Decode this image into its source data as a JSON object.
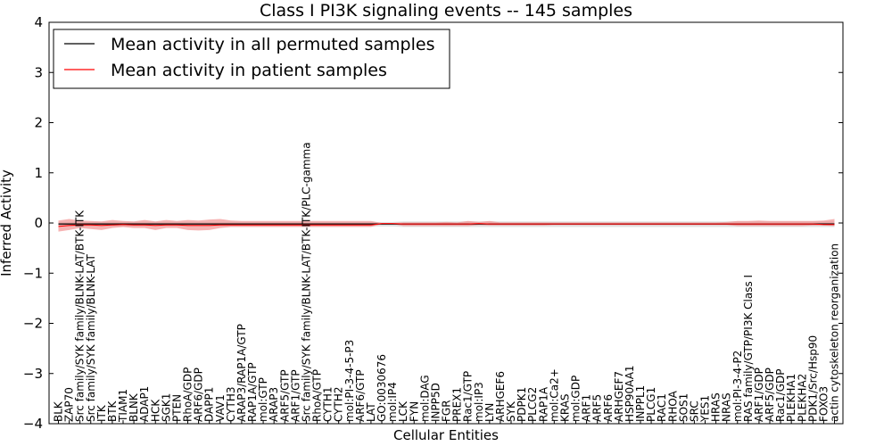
{
  "chart_data": {
    "type": "line",
    "title": "Class I PI3K signaling events -- 145 samples",
    "xlabel": "Cellular Entities",
    "ylabel": "Inferred Activity",
    "ylim": [
      -4,
      4
    ],
    "yticks": [
      -4,
      -3,
      -2,
      -1,
      0,
      1,
      2,
      3,
      4
    ],
    "ytick_labels": [
      "−4",
      "−3",
      "−2",
      "−1",
      "0",
      "1",
      "2",
      "3",
      "4"
    ],
    "legend_position": "top-left",
    "categories": [
      "BLK",
      "ZAP70",
      "Src family/SYK family/BLNK-LAT/BTK-ITK",
      "Src family/SYK family/BLNK-LAT",
      "ITK",
      "BTK",
      "TIAM1",
      "BLNK",
      "ADAP1",
      "HCK",
      "SGK1",
      "PTEN",
      "RhoA/GDP",
      "ARF6/GDP",
      "DAPP1",
      "VAV1",
      "CYTH3",
      "ARAP3/RAP1A/GTP",
      "RAP1A/GTP",
      "mol:GTP",
      "ARAP3",
      "ARF5/GTP",
      "ARF1/GTP",
      "Src family/SYK family/BLNK-LAT/BTK-ITK/PLC-gamma",
      "RhoA/GTP",
      "CYTH1",
      "CYTH2",
      "mol:PI-3-4-5-P3",
      "ARF6/GTP",
      "LAT",
      "GO:0030676",
      "mol:IP4",
      "LCK",
      "FYN",
      "mol:DAG",
      "INPP5D",
      "FGR",
      "PREX1",
      "Rac1/GTP",
      "mol:IP3",
      "LYN",
      "ARHGEF6",
      "SYK",
      "PDPK1",
      "PLCG2",
      "RAP1A",
      "mol:Ca2+",
      "KRAS",
      "mol:GDP",
      "ARF1",
      "ARF5",
      "ARF6",
      "ARHGEF7",
      "HSP90AA1",
      "INPPL1",
      "PLCG1",
      "RAC1",
      "RHOA",
      "SOS1",
      "SRC",
      "YES1",
      "HRAS",
      "NRAS",
      "mol:PI-3-4-P2",
      "RAS family/GTP/PI3K Class I",
      "ARF1/GDP",
      "ARF5/GDP",
      "Rac1/GDP",
      "PLEKHA1",
      "PLEKHA2",
      "PDK1/Src/Hsp90",
      "FOXO3",
      "actin cytoskeleton reorganization"
    ],
    "series": [
      {
        "name": "Mean activity in all permuted samples",
        "color": "#000000",
        "values": [
          -0.02,
          -0.02,
          -0.02,
          -0.02,
          -0.02,
          -0.02,
          -0.02,
          -0.02,
          -0.02,
          -0.02,
          -0.02,
          -0.02,
          -0.02,
          -0.02,
          -0.02,
          -0.02,
          -0.02,
          -0.02,
          -0.02,
          -0.02,
          -0.02,
          -0.02,
          -0.02,
          -0.02,
          -0.02,
          -0.02,
          -0.02,
          -0.02,
          -0.02,
          -0.02,
          -0.02,
          -0.02,
          -0.02,
          -0.02,
          -0.02,
          -0.02,
          -0.02,
          -0.02,
          -0.02,
          -0.02,
          -0.02,
          -0.02,
          -0.02,
          -0.02,
          -0.02,
          -0.02,
          -0.02,
          -0.02,
          -0.02,
          -0.02,
          -0.02,
          -0.02,
          -0.02,
          -0.02,
          -0.02,
          -0.02,
          -0.02,
          -0.02,
          -0.02,
          -0.02,
          -0.02,
          -0.02,
          -0.02,
          -0.02,
          -0.02,
          -0.02,
          -0.02,
          -0.02,
          -0.02,
          -0.02,
          -0.02,
          -0.02,
          -0.02
        ],
        "band_low": [
          -0.07,
          -0.07,
          -0.07,
          -0.07,
          -0.07,
          -0.07,
          -0.07,
          -0.07,
          -0.07,
          -0.07,
          -0.07,
          -0.07,
          -0.07,
          -0.07,
          -0.07,
          -0.07,
          -0.07,
          -0.07,
          -0.07,
          -0.07,
          -0.07,
          -0.07,
          -0.07,
          -0.07,
          -0.07,
          -0.07,
          -0.07,
          -0.07,
          -0.07,
          -0.07,
          -0.07,
          -0.07,
          -0.08,
          -0.08,
          -0.08,
          -0.08,
          -0.08,
          -0.08,
          -0.08,
          -0.08,
          -0.08,
          -0.08,
          -0.08,
          -0.08,
          -0.08,
          -0.08,
          -0.08,
          -0.08,
          -0.08,
          -0.08,
          -0.08,
          -0.08,
          -0.08,
          -0.08,
          -0.08,
          -0.08,
          -0.08,
          -0.08,
          -0.08,
          -0.08,
          -0.08,
          -0.08,
          -0.08,
          -0.08,
          -0.08,
          -0.08,
          -0.08,
          -0.08,
          -0.08,
          -0.08,
          -0.08,
          -0.08,
          -0.08
        ],
        "band_high": [
          0.02,
          0.02,
          0.02,
          0.02,
          0.02,
          0.02,
          0.02,
          0.02,
          0.02,
          0.02,
          0.02,
          0.02,
          0.02,
          0.02,
          0.02,
          0.02,
          0.02,
          0.02,
          0.02,
          0.02,
          0.02,
          0.02,
          0.02,
          0.02,
          0.02,
          0.02,
          0.02,
          0.02,
          0.02,
          0.02,
          0.02,
          0.02,
          0.03,
          0.03,
          0.03,
          0.03,
          0.03,
          0.03,
          0.03,
          0.03,
          0.03,
          0.03,
          0.03,
          0.03,
          0.03,
          0.03,
          0.03,
          0.03,
          0.03,
          0.03,
          0.03,
          0.03,
          0.03,
          0.03,
          0.03,
          0.03,
          0.03,
          0.03,
          0.03,
          0.03,
          0.03,
          0.03,
          0.03,
          0.03,
          0.03,
          0.03,
          0.03,
          0.03,
          0.03,
          0.03,
          0.03,
          0.03,
          0.03
        ]
      },
      {
        "name": "Mean activity in patient samples",
        "color": "#ff0000",
        "values": [
          -0.07,
          -0.05,
          -0.04,
          -0.04,
          -0.05,
          -0.04,
          -0.03,
          -0.04,
          -0.04,
          -0.05,
          -0.04,
          -0.04,
          -0.05,
          -0.05,
          -0.05,
          -0.04,
          -0.04,
          -0.04,
          -0.04,
          -0.04,
          -0.04,
          -0.04,
          -0.04,
          -0.04,
          -0.04,
          -0.04,
          -0.04,
          -0.04,
          -0.04,
          -0.04,
          -0.01,
          -0.01,
          -0.02,
          -0.02,
          -0.02,
          -0.02,
          -0.02,
          -0.02,
          -0.02,
          -0.01,
          -0.02,
          -0.02,
          -0.02,
          -0.02,
          -0.02,
          -0.02,
          -0.02,
          -0.02,
          -0.02,
          -0.02,
          -0.02,
          -0.02,
          -0.02,
          -0.02,
          -0.02,
          -0.02,
          -0.02,
          -0.02,
          -0.02,
          -0.02,
          -0.02,
          -0.02,
          -0.02,
          -0.02,
          -0.02,
          -0.02,
          -0.02,
          -0.02,
          -0.02,
          -0.02,
          -0.02,
          -0.03,
          -0.03
        ],
        "band_low": [
          -0.17,
          -0.14,
          -0.1,
          -0.12,
          -0.14,
          -0.1,
          -0.08,
          -0.1,
          -0.1,
          -0.14,
          -0.1,
          -0.1,
          -0.14,
          -0.15,
          -0.14,
          -0.1,
          -0.08,
          -0.08,
          -0.08,
          -0.08,
          -0.08,
          -0.08,
          -0.08,
          -0.08,
          -0.08,
          -0.08,
          -0.08,
          -0.08,
          -0.08,
          -0.08,
          -0.02,
          -0.02,
          -0.06,
          -0.06,
          -0.06,
          -0.06,
          -0.06,
          -0.06,
          -0.06,
          -0.04,
          -0.05,
          -0.05,
          -0.05,
          -0.05,
          -0.05,
          -0.05,
          -0.04,
          -0.04,
          -0.04,
          -0.04,
          -0.04,
          -0.04,
          -0.04,
          -0.04,
          -0.04,
          -0.04,
          -0.04,
          -0.04,
          -0.04,
          -0.04,
          -0.04,
          -0.04,
          -0.04,
          -0.06,
          -0.06,
          -0.06,
          -0.06,
          -0.06,
          -0.06,
          -0.06,
          -0.05,
          -0.05,
          -0.06
        ],
        "band_high": [
          0.05,
          0.08,
          0.05,
          0.04,
          0.03,
          0.06,
          0.04,
          0.03,
          0.06,
          0.03,
          0.06,
          0.04,
          0.06,
          0.05,
          0.07,
          0.08,
          0.05,
          0.04,
          0.04,
          0.04,
          0.04,
          0.04,
          0.04,
          0.04,
          0.04,
          0.04,
          0.04,
          0.04,
          0.04,
          0.04,
          0.0,
          0.0,
          0.01,
          0.01,
          0.01,
          0.01,
          0.02,
          0.01,
          0.04,
          0.02,
          0.04,
          0.01,
          0.01,
          0.01,
          0.01,
          0.01,
          0.01,
          0.01,
          0.01,
          0.01,
          0.01,
          0.01,
          0.01,
          0.01,
          0.01,
          0.01,
          0.01,
          0.01,
          0.01,
          0.01,
          0.01,
          0.01,
          0.02,
          0.04,
          0.04,
          0.05,
          0.04,
          0.04,
          0.04,
          0.04,
          0.04,
          0.05,
          0.08
        ]
      }
    ]
  },
  "colors": {
    "permuted_band": "#d9d9d9",
    "patient_band": "#f08080"
  }
}
